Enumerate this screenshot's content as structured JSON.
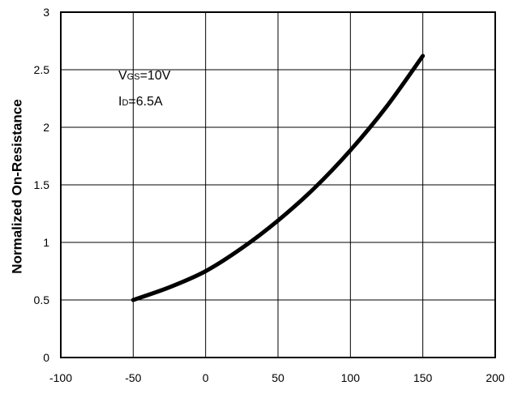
{
  "chart_data": {
    "type": "line",
    "title": "",
    "xlabel": "",
    "ylabel": "Normalized On-Resistance",
    "xlim": [
      -100,
      200
    ],
    "ylim": [
      0,
      3
    ],
    "xticks": [
      "-100",
      "-50",
      "0",
      "50",
      "100",
      "150",
      "200"
    ],
    "yticks": [
      "0",
      "0.5",
      "1",
      "1.5",
      "2",
      "2.5",
      "3"
    ],
    "grid": true,
    "series": [
      {
        "color": "#000000",
        "x": [
          -50,
          -25,
          0,
          25,
          50,
          75,
          100,
          125,
          150
        ],
        "y": [
          0.5,
          0.61,
          0.75,
          0.95,
          1.19,
          1.47,
          1.8,
          2.18,
          2.62
        ]
      }
    ],
    "annotations": [
      {
        "main": "V",
        "sub": "GS",
        "rest": "=10V"
      },
      {
        "main": "I",
        "sub": "D",
        "rest": "=6.5A"
      }
    ]
  }
}
